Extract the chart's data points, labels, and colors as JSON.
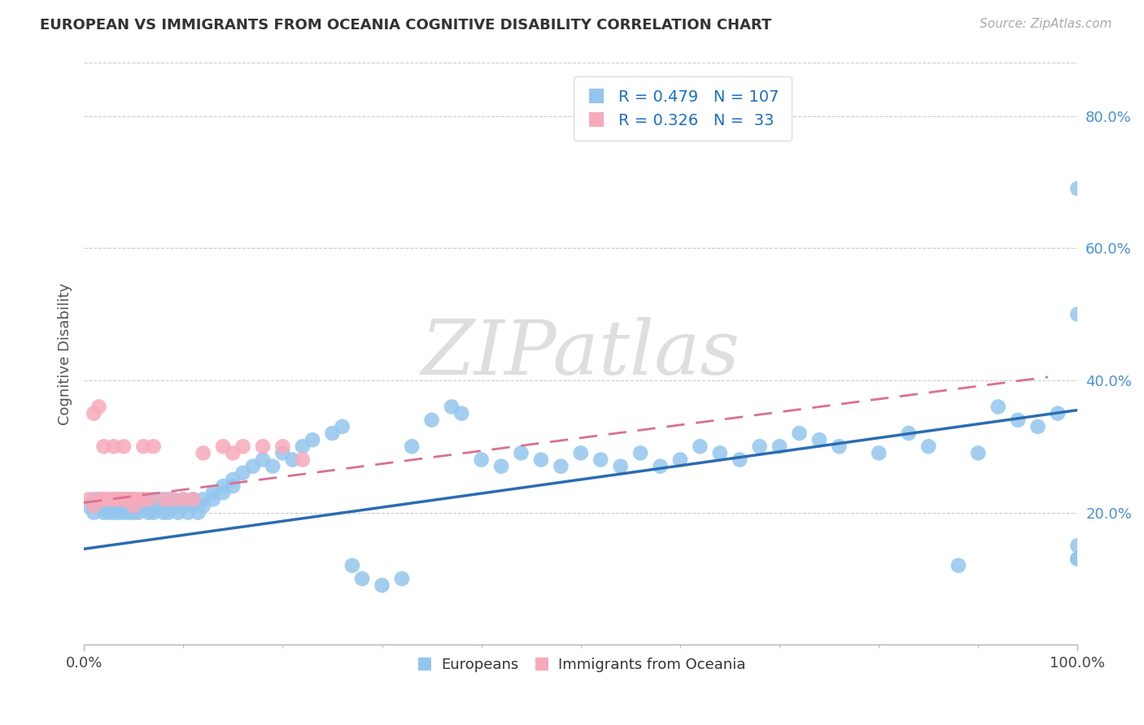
{
  "title": "EUROPEAN VS IMMIGRANTS FROM OCEANIA COGNITIVE DISABILITY CORRELATION CHART",
  "source": "Source: ZipAtlas.com",
  "ylabel": "Cognitive Disability",
  "xlim": [
    0.0,
    1.0
  ],
  "ylim": [
    0.0,
    0.88
  ],
  "yticks": [
    0.2,
    0.4,
    0.6,
    0.8
  ],
  "ytick_labels": [
    "20.0%",
    "40.0%",
    "60.0%",
    "80.0%"
  ],
  "xticks": [
    0.0,
    1.0
  ],
  "xtick_labels": [
    "0.0%",
    "100.0%"
  ],
  "legend1_label": "Europeans",
  "legend2_label": "Immigrants from Oceania",
  "blue_color": "#93C6EE",
  "pink_color": "#F7AABB",
  "blue_line_color": "#2B6CB0",
  "pink_line_color": "#D97090",
  "R1": 0.479,
  "N1": 107,
  "R2": 0.326,
  "N2": 33,
  "legend_text_color": "#1a6fc4",
  "blue_line_x": [
    0.0,
    1.0
  ],
  "blue_line_y": [
    0.145,
    0.355
  ],
  "pink_line_x": [
    0.0,
    0.97
  ],
  "pink_line_y": [
    0.215,
    0.405
  ],
  "blues_x": [
    0.005,
    0.01,
    0.01,
    0.015,
    0.015,
    0.02,
    0.02,
    0.02,
    0.025,
    0.025,
    0.03,
    0.03,
    0.03,
    0.035,
    0.035,
    0.04,
    0.04,
    0.04,
    0.04,
    0.045,
    0.045,
    0.05,
    0.05,
    0.05,
    0.055,
    0.055,
    0.06,
    0.06,
    0.065,
    0.065,
    0.07,
    0.07,
    0.07,
    0.075,
    0.08,
    0.08,
    0.08,
    0.085,
    0.085,
    0.09,
    0.09,
    0.095,
    0.1,
    0.1,
    0.105,
    0.11,
    0.11,
    0.115,
    0.12,
    0.12,
    0.13,
    0.13,
    0.14,
    0.14,
    0.15,
    0.15,
    0.16,
    0.17,
    0.18,
    0.19,
    0.2,
    0.21,
    0.22,
    0.23,
    0.25,
    0.26,
    0.27,
    0.28,
    0.3,
    0.32,
    0.33,
    0.35,
    0.37,
    0.38,
    0.4,
    0.42,
    0.44,
    0.46,
    0.48,
    0.5,
    0.52,
    0.54,
    0.56,
    0.58,
    0.6,
    0.62,
    0.64,
    0.66,
    0.68,
    0.7,
    0.72,
    0.74,
    0.76,
    0.8,
    0.83,
    0.85,
    0.88,
    0.9,
    0.92,
    0.94,
    0.96,
    0.98,
    1.0,
    1.0,
    1.0,
    1.0,
    1.0
  ],
  "blues_y": [
    0.21,
    0.2,
    0.22,
    0.21,
    0.22,
    0.2,
    0.21,
    0.22,
    0.2,
    0.21,
    0.22,
    0.2,
    0.21,
    0.2,
    0.22,
    0.2,
    0.21,
    0.22,
    0.21,
    0.2,
    0.22,
    0.21,
    0.2,
    0.22,
    0.21,
    0.2,
    0.21,
    0.22,
    0.2,
    0.21,
    0.21,
    0.22,
    0.2,
    0.21,
    0.22,
    0.2,
    0.21,
    0.2,
    0.22,
    0.21,
    0.22,
    0.2,
    0.22,
    0.21,
    0.2,
    0.22,
    0.21,
    0.2,
    0.22,
    0.21,
    0.23,
    0.22,
    0.24,
    0.23,
    0.25,
    0.24,
    0.26,
    0.27,
    0.28,
    0.27,
    0.29,
    0.28,
    0.3,
    0.31,
    0.32,
    0.33,
    0.12,
    0.1,
    0.09,
    0.1,
    0.3,
    0.34,
    0.36,
    0.35,
    0.28,
    0.27,
    0.29,
    0.28,
    0.27,
    0.29,
    0.28,
    0.27,
    0.29,
    0.27,
    0.28,
    0.3,
    0.29,
    0.28,
    0.3,
    0.3,
    0.32,
    0.31,
    0.3,
    0.29,
    0.32,
    0.3,
    0.12,
    0.29,
    0.36,
    0.34,
    0.33,
    0.35,
    0.69,
    0.15,
    0.5,
    0.13,
    0.13
  ],
  "pinks_x": [
    0.005,
    0.01,
    0.01,
    0.015,
    0.015,
    0.02,
    0.02,
    0.02,
    0.025,
    0.03,
    0.03,
    0.035,
    0.04,
    0.04,
    0.045,
    0.05,
    0.05,
    0.055,
    0.06,
    0.06,
    0.065,
    0.07,
    0.08,
    0.09,
    0.1,
    0.11,
    0.12,
    0.14,
    0.15,
    0.16,
    0.18,
    0.2,
    0.22
  ],
  "pinks_y": [
    0.22,
    0.21,
    0.35,
    0.22,
    0.36,
    0.22,
    0.3,
    0.22,
    0.22,
    0.3,
    0.22,
    0.22,
    0.22,
    0.3,
    0.22,
    0.22,
    0.21,
    0.22,
    0.22,
    0.3,
    0.22,
    0.3,
    0.22,
    0.22,
    0.22,
    0.22,
    0.29,
    0.3,
    0.29,
    0.3,
    0.3,
    0.3,
    0.28
  ]
}
